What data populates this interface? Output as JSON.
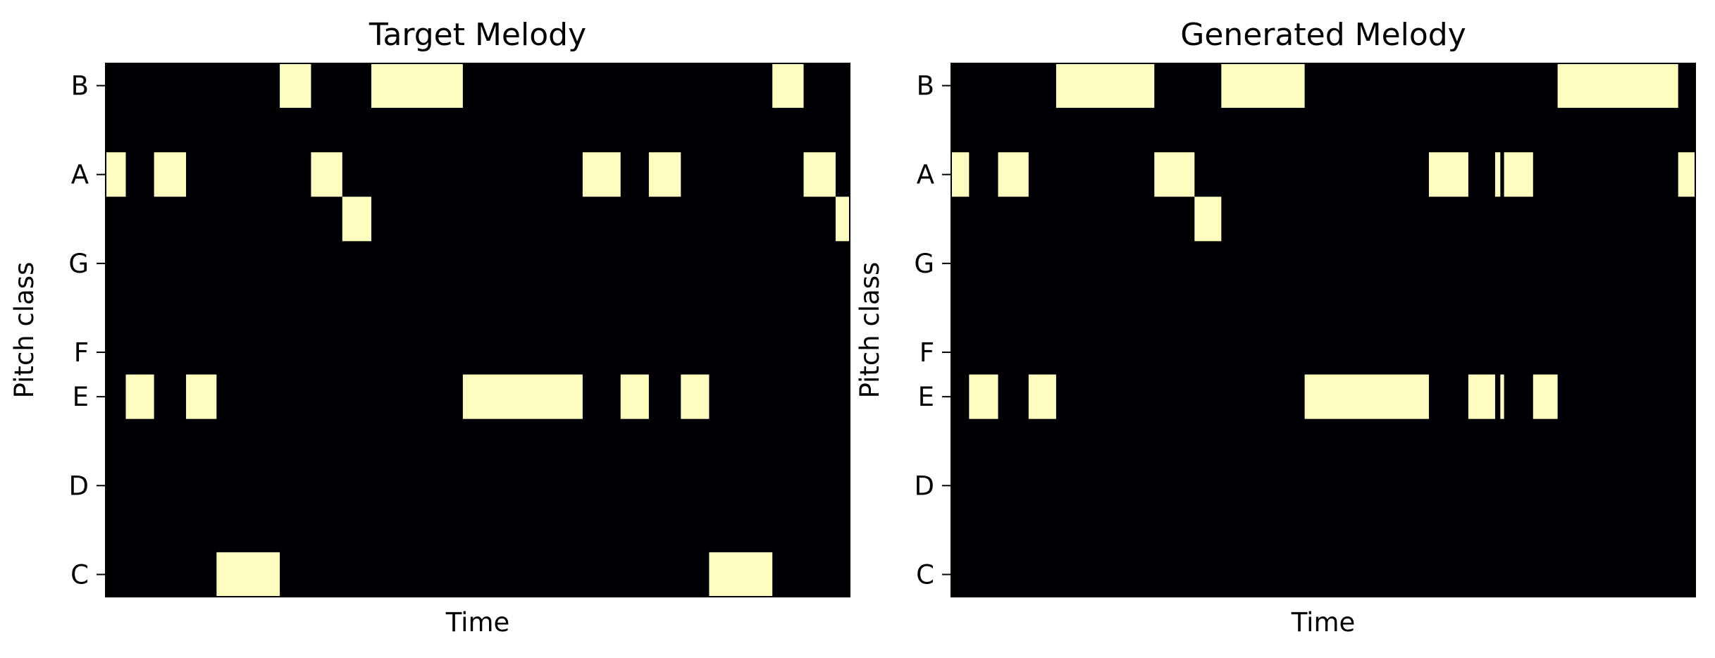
{
  "chart_data": [
    {
      "type": "heatmap",
      "title": "Target Melody",
      "xlabel": "Time",
      "ylabel": "Pitch class",
      "y_ticks": [
        "C",
        "D",
        "E",
        "F",
        "G",
        "A",
        "B"
      ],
      "pitch_rows": [
        "C",
        "C#",
        "D",
        "D#",
        "E",
        "F",
        "F#",
        "G",
        "G#",
        "A",
        "A#",
        "B"
      ],
      "xlim": [
        0,
        100
      ],
      "colors": {
        "background": "#000004",
        "note": "#fcfdbf"
      },
      "notes": [
        {
          "pitch": "A",
          "start": 0.0,
          "end": 2.7
        },
        {
          "pitch": "E",
          "start": 2.7,
          "end": 6.5
        },
        {
          "pitch": "A",
          "start": 6.5,
          "end": 10.8
        },
        {
          "pitch": "E",
          "start": 10.8,
          "end": 14.9
        },
        {
          "pitch": "C",
          "start": 14.9,
          "end": 23.4
        },
        {
          "pitch": "B",
          "start": 23.4,
          "end": 27.6
        },
        {
          "pitch": "A",
          "start": 27.6,
          "end": 31.8
        },
        {
          "pitch": "G#",
          "start": 31.8,
          "end": 35.7
        },
        {
          "pitch": "B",
          "start": 35.7,
          "end": 48.0
        },
        {
          "pitch": "E",
          "start": 48.0,
          "end": 64.1
        },
        {
          "pitch": "A",
          "start": 64.1,
          "end": 69.2
        },
        {
          "pitch": "E",
          "start": 69.2,
          "end": 73.0
        },
        {
          "pitch": "A",
          "start": 73.0,
          "end": 77.3
        },
        {
          "pitch": "E",
          "start": 77.3,
          "end": 81.1
        },
        {
          "pitch": "C",
          "start": 81.1,
          "end": 89.6
        },
        {
          "pitch": "B",
          "start": 89.6,
          "end": 93.8
        },
        {
          "pitch": "A",
          "start": 93.8,
          "end": 98.1
        },
        {
          "pitch": "G#",
          "start": 98.1,
          "end": 100.0
        }
      ]
    },
    {
      "type": "heatmap",
      "title": "Generated Melody",
      "xlabel": "Time",
      "ylabel": "Pitch class",
      "y_ticks": [
        "C",
        "D",
        "E",
        "F",
        "G",
        "A",
        "B"
      ],
      "pitch_rows": [
        "C",
        "C#",
        "D",
        "D#",
        "E",
        "F",
        "F#",
        "G",
        "G#",
        "A",
        "A#",
        "B"
      ],
      "xlim": [
        0,
        100
      ],
      "colors": {
        "background": "#000004",
        "note": "#fcfdbf"
      },
      "notes": [
        {
          "pitch": "A",
          "start": 0.0,
          "end": 2.4
        },
        {
          "pitch": "E",
          "start": 2.4,
          "end": 6.3
        },
        {
          "pitch": "A",
          "start": 6.3,
          "end": 10.4
        },
        {
          "pitch": "E",
          "start": 10.4,
          "end": 14.1
        },
        {
          "pitch": "B",
          "start": 14.1,
          "end": 27.3
        },
        {
          "pitch": "A",
          "start": 27.3,
          "end": 32.7
        },
        {
          "pitch": "G#",
          "start": 32.7,
          "end": 36.3
        },
        {
          "pitch": "B",
          "start": 36.3,
          "end": 47.5
        },
        {
          "pitch": "E",
          "start": 47.5,
          "end": 64.2
        },
        {
          "pitch": "A",
          "start": 64.2,
          "end": 69.5
        },
        {
          "pitch": "E",
          "start": 69.5,
          "end": 73.1
        },
        {
          "pitch": "A",
          "start": 73.1,
          "end": 73.8
        },
        {
          "pitch": "E",
          "start": 73.8,
          "end": 74.3
        },
        {
          "pitch": "A",
          "start": 74.3,
          "end": 78.2
        },
        {
          "pitch": "E",
          "start": 78.2,
          "end": 81.5
        },
        {
          "pitch": "B",
          "start": 81.5,
          "end": 97.7
        },
        {
          "pitch": "A",
          "start": 97.7,
          "end": 100.0
        }
      ]
    }
  ]
}
